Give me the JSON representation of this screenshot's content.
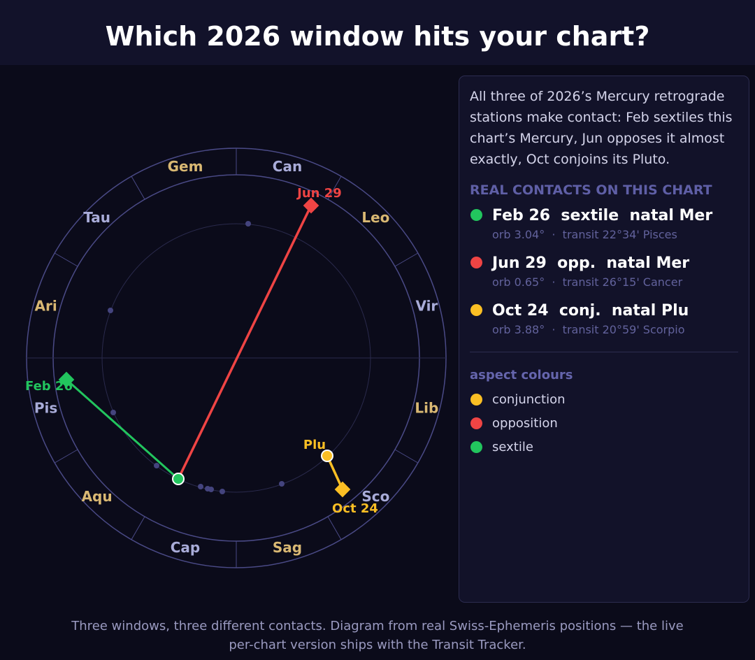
{
  "header": {
    "title": "Which 2026 window hits your chart?"
  },
  "wheel": {
    "signs": [
      "Ari",
      "Tau",
      "Gem",
      "Can",
      "Leo",
      "Vir",
      "Lib",
      "Sco",
      "Sag",
      "Cap",
      "Aqu",
      "Pis"
    ],
    "sign_colors": [
      "#d9b873",
      "#a9acd9"
    ],
    "natal_label": "Plu",
    "transits": [
      {
        "label": "Feb 26",
        "color": "#22c55e"
      },
      {
        "label": "Jun 29",
        "color": "#ef4444"
      },
      {
        "label": "Oct 24",
        "color": "#fbbf24"
      }
    ]
  },
  "panel": {
    "intro": "All three of 2026’s Mercury retrograde stations make contact: Feb sextiles this chart’s Mercury, Jun opposes it almost exactly, Oct conjoins its Pluto.",
    "heading": "REAL CONTACTS ON THIS CHART",
    "contacts": [
      {
        "title": "Feb 26  sextile  natal Mer",
        "detail": "orb 3.04°  ·  transit 22°34' Pisces",
        "color": "#22c55e"
      },
      {
        "title": "Jun 29  opp.  natal Mer",
        "detail": "orb 0.65°  ·  transit 26°15' Cancer",
        "color": "#ef4444"
      },
      {
        "title": "Oct 24  conj.  natal Plu",
        "detail": "orb 3.88°  ·  transit 20°59' Scorpio",
        "color": "#fbbf24"
      }
    ],
    "legend_title": "aspect colours",
    "legend": [
      {
        "label": "conjunction",
        "color": "#fbbf24"
      },
      {
        "label": "opposition",
        "color": "#ef4444"
      },
      {
        "label": "sextile",
        "color": "#22c55e"
      }
    ]
  },
  "footer": {
    "text": "Three windows, three different contacts. Diagram from real Swiss-Ephemeris positions — the live per-chart version ships with the Transit Tracker."
  }
}
